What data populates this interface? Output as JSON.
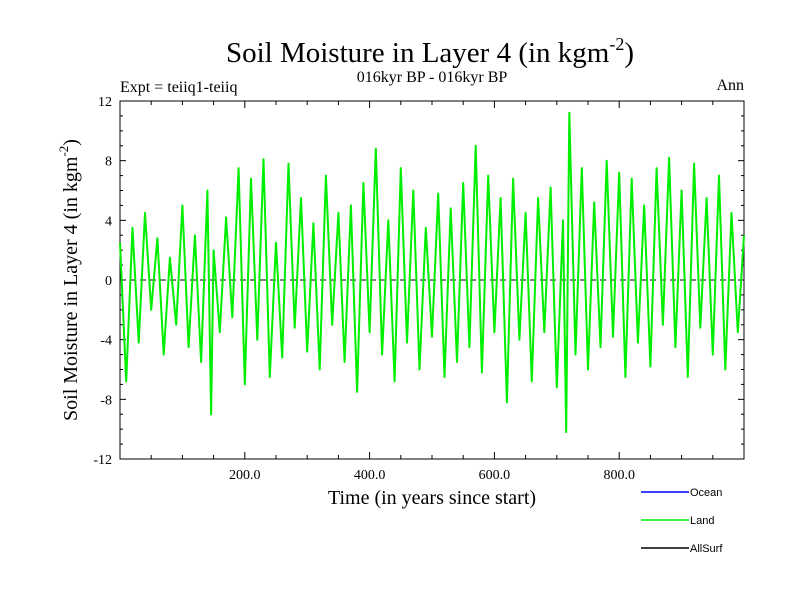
{
  "chart_data": {
    "type": "line",
    "title": "Soil Moisture in Layer 4 (in kgm",
    "title_sup": "-2",
    "title_close": ")",
    "subtitle": "016kyr BP - 016kyr BP",
    "left_note": "Expt = teiiq1-teiiq",
    "right_note": "Ann",
    "xlabel": "Time (in years since start)",
    "ylabel": "Soil Moisture in Layer 4 (in kgm",
    "ylabel_sup": "-2",
    "ylabel_close": ")",
    "xlim": [
      0,
      1000
    ],
    "ylim": [
      -12,
      12
    ],
    "x_ticks": [
      200,
      400,
      600,
      800
    ],
    "x_tick_labels": [
      "200.0",
      "400.0",
      "600.0",
      "800.0"
    ],
    "y_ticks": [
      -12,
      -8,
      -4,
      0,
      4,
      8,
      12
    ],
    "y_tick_labels": [
      "-12",
      "-8",
      "-4",
      "0",
      "4",
      "8",
      "12"
    ],
    "zero_line": true,
    "grid": false,
    "legend_position": "bottom-right",
    "series": [
      {
        "name": "Ocean",
        "color": "#0000ff",
        "values": []
      },
      {
        "name": "Land",
        "color": "#00ee00",
        "x": [
          0,
          10,
          20,
          30,
          40,
          50,
          60,
          70,
          80,
          90,
          100,
          110,
          120,
          130,
          140,
          146,
          150,
          160,
          170,
          180,
          190,
          200,
          210,
          220,
          230,
          240,
          250,
          260,
          270,
          280,
          290,
          300,
          310,
          320,
          330,
          340,
          350,
          360,
          370,
          380,
          390,
          400,
          410,
          420,
          430,
          440,
          450,
          460,
          470,
          480,
          490,
          500,
          510,
          520,
          530,
          540,
          550,
          560,
          570,
          580,
          590,
          600,
          610,
          620,
          630,
          640,
          650,
          660,
          670,
          680,
          690,
          700,
          710,
          715,
          720,
          730,
          740,
          750,
          760,
          770,
          780,
          790,
          800,
          810,
          820,
          830,
          840,
          850,
          860,
          870,
          880,
          890,
          900,
          910,
          920,
          930,
          940,
          950,
          960,
          970,
          980,
          990,
          1000
        ],
        "values": [
          2.5,
          -6.8,
          3.5,
          -4.2,
          4.5,
          -2.0,
          2.8,
          -5.0,
          1.5,
          -3.0,
          5.0,
          -4.5,
          3.0,
          -5.5,
          6.0,
          -9.0,
          2.0,
          -3.5,
          4.2,
          -2.5,
          7.5,
          -7.0,
          6.8,
          -4.0,
          8.1,
          -6.5,
          2.5,
          -5.2,
          7.8,
          -3.2,
          5.5,
          -4.8,
          3.8,
          -6.0,
          7.0,
          -3.0,
          4.5,
          -5.5,
          5.0,
          -7.5,
          6.5,
          -3.5,
          8.8,
          -5.0,
          4.0,
          -6.8,
          7.5,
          -4.2,
          6.0,
          -6.0,
          3.5,
          -3.8,
          5.8,
          -6.5,
          4.8,
          -5.5,
          6.5,
          -4.5,
          9.0,
          -6.2,
          7.0,
          -3.5,
          5.5,
          -8.2,
          6.8,
          -4.0,
          4.5,
          -6.8,
          5.5,
          -3.5,
          6.2,
          -7.2,
          4.0,
          -10.2,
          11.2,
          -5.0,
          7.5,
          -6.0,
          5.2,
          -4.5,
          8.0,
          -3.8,
          7.2,
          -6.5,
          6.8,
          -4.2,
          5.0,
          -5.8,
          7.5,
          -3.0,
          8.2,
          -4.5,
          6.0,
          -6.5,
          7.8,
          -3.2,
          5.5,
          -5.0,
          7.0,
          -6.0,
          4.5,
          -3.5,
          3.0
        ]
      },
      {
        "name": "AllSurf",
        "color": "#000000",
        "values": []
      }
    ]
  }
}
